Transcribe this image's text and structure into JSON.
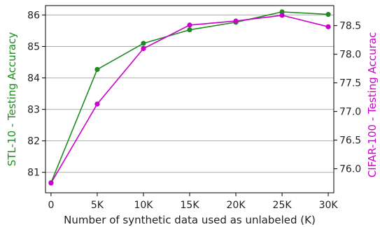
{
  "chart_data": {
    "type": "line",
    "xlabel": "Number of synthetic data used as unlabeled (K)",
    "x_categories": [
      "0",
      "5K",
      "10K",
      "15K",
      "20K",
      "25K",
      "30K"
    ],
    "x": [
      0,
      5,
      10,
      15,
      20,
      25,
      30
    ],
    "grid": "horizontal",
    "left_axis": {
      "label": "STL-10 - Testing Accuracy",
      "ylim": [
        80.35,
        86.3
      ],
      "ticks": [
        81,
        82,
        83,
        84,
        85,
        86
      ],
      "tick_labels": [
        "81",
        "82",
        "83",
        "84",
        "85",
        "86"
      ],
      "color": "#1e8b1e"
    },
    "right_axis": {
      "label": "CIFAR-100 - Testing Accurac",
      "ylim": [
        75.58,
        78.85
      ],
      "ticks": [
        76.0,
        76.5,
        77.0,
        77.5,
        78.0,
        78.5
      ],
      "tick_labels": [
        "76.0",
        "76.5",
        "77.0",
        "77.5",
        "78.0",
        "78.5"
      ],
      "color": "#cc00cc"
    },
    "series": [
      {
        "axis": "left",
        "color": "#1e8b1e",
        "values": [
          80.67,
          84.27,
          85.1,
          85.53,
          85.77,
          86.1,
          86.02
        ]
      },
      {
        "axis": "right",
        "color": "#cc00cc",
        "values": [
          75.75,
          77.13,
          78.1,
          78.51,
          78.58,
          78.68,
          78.48
        ]
      }
    ]
  }
}
